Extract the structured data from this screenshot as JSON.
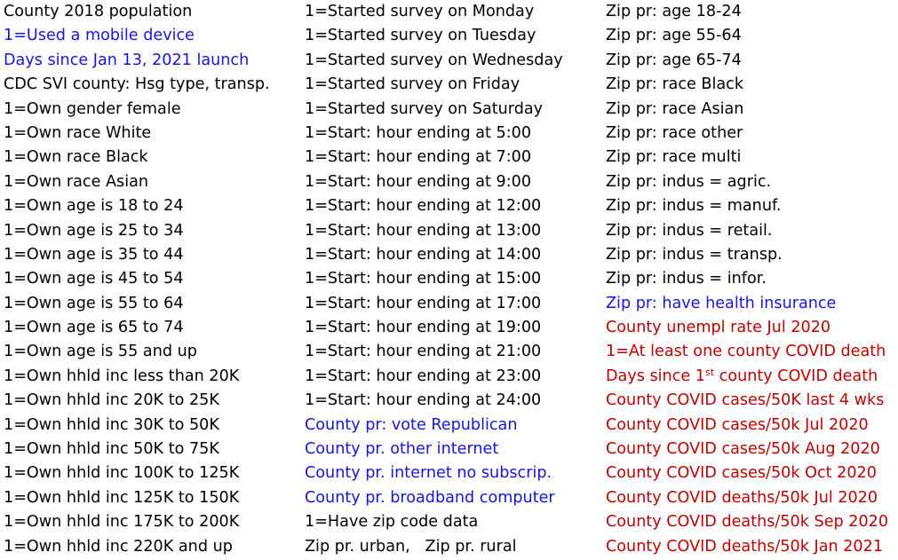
{
  "columns": [
    [
      {
        "text": "County 2018 population",
        "color": "black"
      },
      {
        "text": "1=Used a mobile device",
        "color": "blue"
      },
      {
        "text": "Days since Jan 13, 2021 launch",
        "color": "blue"
      },
      {
        "text": "CDC SVI county: Hsg type, transp.",
        "color": "black"
      },
      {
        "text": "1=Own gender female",
        "color": "black"
      },
      {
        "text": "1=Own race White",
        "color": "black"
      },
      {
        "text": "1=Own race Black",
        "color": "black"
      },
      {
        "text": "1=Own race Asian",
        "color": "black"
      },
      {
        "text": "1=Own age is 18 to 24",
        "color": "black"
      },
      {
        "text": "1=Own age is 25 to 34",
        "color": "black"
      },
      {
        "text": "1=Own age is 35 to 44",
        "color": "black"
      },
      {
        "text": "1=Own age is 45 to 54",
        "color": "black"
      },
      {
        "text": "1=Own age is 55 to 64",
        "color": "black"
      },
      {
        "text": "1=Own age is 65 to 74",
        "color": "black"
      },
      {
        "text": "1=Own age is 55 and up",
        "color": "black"
      },
      {
        "text": "1=Own hhld inc less than 20K",
        "color": "black"
      },
      {
        "text": "1=Own hhld inc 20K to 25K",
        "color": "black"
      },
      {
        "text": "1=Own hhld inc 30K to 50K",
        "color": "black"
      },
      {
        "text": "1=Own hhld inc 50K to 75K",
        "color": "black"
      },
      {
        "text": "1=Own hhld inc 100K to 125K",
        "color": "black"
      },
      {
        "text": "1=Own hhld inc 125K to 150K",
        "color": "black"
      },
      {
        "text": "1=Own hhld inc 175K to 200K",
        "color": "black"
      },
      {
        "text": "1=Own hhld inc 220K and up",
        "color": "black"
      }
    ],
    [
      {
        "text": "1=Started survey on Monday",
        "color": "black"
      },
      {
        "text": "1=Started survey on Tuesday",
        "color": "black"
      },
      {
        "text": "1=Started survey on Wednesday",
        "color": "black"
      },
      {
        "text": "1=Started survey on Friday",
        "color": "black"
      },
      {
        "text": "1=Started survey on Saturday",
        "color": "black"
      },
      {
        "text": "1=Start: hour ending at 5:00",
        "color": "black"
      },
      {
        "text": "1=Start: hour ending at 7:00",
        "color": "black"
      },
      {
        "text": "1=Start: hour ending at 9:00",
        "color": "black"
      },
      {
        "text": "1=Start: hour ending at 12:00",
        "color": "black"
      },
      {
        "text": "1=Start: hour ending at 13:00",
        "color": "black"
      },
      {
        "text": "1=Start: hour ending at 14:00",
        "color": "black"
      },
      {
        "text": "1=Start: hour ending at 15:00",
        "color": "black"
      },
      {
        "text": "1=Start: hour ending at 17:00",
        "color": "black"
      },
      {
        "text": "1=Start: hour ending at 19:00",
        "color": "black"
      },
      {
        "text": "1=Start: hour ending at 21:00",
        "color": "black"
      },
      {
        "text": "1=Start: hour ending at 23:00",
        "color": "black"
      },
      {
        "text": "1=Start: hour ending at 24:00",
        "color": "black"
      },
      {
        "text": "County pr: vote Republican",
        "color": "blue"
      },
      {
        "text": "County pr. other internet",
        "color": "blue"
      },
      {
        "text": "County pr. internet no subscrip.",
        "color": "blue"
      },
      {
        "text": "County pr. broadband computer",
        "color": "blue"
      },
      {
        "text": "1=Have zip code data",
        "color": "black"
      },
      {
        "text": "Zip pr. urban,   Zip pr. rural",
        "color": "black"
      }
    ],
    [
      {
        "text": "Zip pr: age 18-24",
        "color": "black"
      },
      {
        "text": "Zip pr: age 55-64",
        "color": "black"
      },
      {
        "text": "Zip pr: age 65-74",
        "color": "black"
      },
      {
        "text": "Zip pr: race Black",
        "color": "black"
      },
      {
        "text": "Zip pr: race Asian",
        "color": "black"
      },
      {
        "text": "Zip pr: race other",
        "color": "black"
      },
      {
        "text": "Zip pr: race multi",
        "color": "black"
      },
      {
        "text": "Zip pr: indus = agric.",
        "color": "black"
      },
      {
        "text": "Zip pr: indus = manuf.",
        "color": "black"
      },
      {
        "text": "Zip pr: indus = retail.",
        "color": "black"
      },
      {
        "text": "Zip pr: indus = transp.",
        "color": "black"
      },
      {
        "text": "Zip pr: indus = infor.",
        "color": "black"
      },
      {
        "text": "Zip pr: have health insurance",
        "color": "blue"
      },
      {
        "text": "County unempl rate Jul 2020",
        "color": "red"
      },
      {
        "text": "1=At least one county COVID death",
        "color": "red"
      },
      {
        "text": "Days since 1",
        "sup": "st",
        "after": " county COVID death",
        "color": "red"
      },
      {
        "text": "County COVID cases/50K last 4 wks",
        "color": "red"
      },
      {
        "text": "County COVID cases/50k Jul 2020",
        "color": "red"
      },
      {
        "text": "County COVID cases/50k Aug 2020",
        "color": "red"
      },
      {
        "text": "County COVID cases/50k Oct 2020",
        "color": "red"
      },
      {
        "text": "County COVID deaths/50k Jul 2020",
        "color": "red"
      },
      {
        "text": "County COVID deaths/50k Sep 2020",
        "color": "red"
      },
      {
        "text": "County COVID deaths/50k Jan 2021",
        "color": "red"
      }
    ]
  ]
}
